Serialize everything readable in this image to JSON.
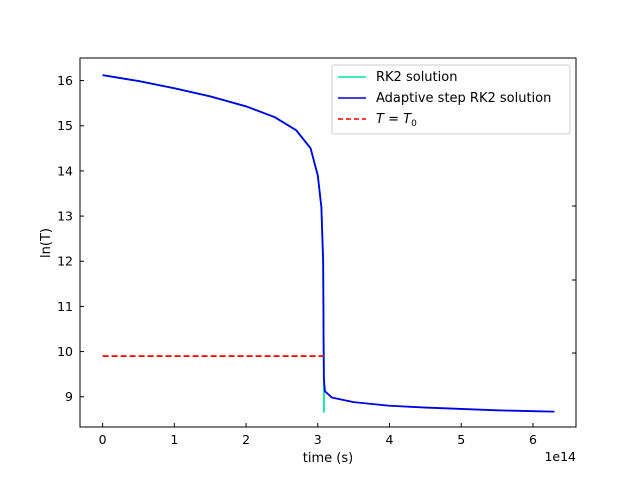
{
  "chart_data": {
    "type": "line",
    "xlabel": "time (s)",
    "ylabel": "ln(T)",
    "x_offset_label": "1e14",
    "xlim": [
      -0.315,
      6.6
    ],
    "ylim": [
      8.33,
      16.5
    ],
    "x_ticks": [
      0,
      1,
      2,
      3,
      4,
      5,
      6
    ],
    "y_ticks": [
      9,
      10,
      11,
      12,
      13,
      14,
      15,
      16
    ],
    "x_tick_labels": [
      "0",
      "1",
      "2",
      "3",
      "4",
      "5",
      "6"
    ],
    "y_tick_labels": [
      "9",
      "10",
      "11",
      "12",
      "13",
      "14",
      "15",
      "16"
    ],
    "grid": false,
    "legend_position": "upper right",
    "series": [
      {
        "name": "RK2 solution",
        "color": "#00e5a0",
        "style": "solid",
        "x": [
          0,
          0.5,
          1.0,
          1.5,
          2.0,
          2.4,
          2.7,
          2.9,
          3.0,
          3.05,
          3.075,
          3.08,
          3.085,
          3.085
        ],
        "y": [
          16.12,
          15.99,
          15.83,
          15.65,
          15.43,
          15.19,
          14.9,
          14.5,
          13.9,
          13.2,
          12.0,
          10.5,
          9.4,
          8.65
        ]
      },
      {
        "name": "Adaptive step RK2 solution",
        "color": "#0000e0",
        "style": "solid",
        "x": [
          0,
          0.5,
          1.0,
          1.5,
          2.0,
          2.4,
          2.7,
          2.9,
          3.0,
          3.05,
          3.075,
          3.08,
          3.085,
          3.1,
          3.2,
          3.5,
          4.0,
          4.5,
          5.0,
          5.5,
          6.0,
          6.3
        ],
        "y": [
          16.12,
          15.99,
          15.83,
          15.65,
          15.43,
          15.19,
          14.9,
          14.5,
          13.9,
          13.2,
          12.0,
          10.5,
          9.4,
          9.12,
          8.98,
          8.88,
          8.8,
          8.76,
          8.73,
          8.7,
          8.68,
          8.67
        ]
      },
      {
        "name": "$T = T_0$",
        "color": "#ff0000",
        "style": "dashed",
        "x": [
          0,
          3.085
        ],
        "y": [
          9.9,
          9.9
        ]
      }
    ]
  },
  "legend": {
    "items": [
      {
        "label": "RK2 solution",
        "color": "#00e5a0",
        "style": "solid"
      },
      {
        "label": "Adaptive step RK2 solution",
        "color": "#0000e0",
        "style": "solid"
      },
      {
        "label_main": "T",
        "label_eq": " = ",
        "label_main2": "T",
        "label_sub": "0",
        "color": "#ff0000",
        "style": "dashed"
      }
    ]
  }
}
